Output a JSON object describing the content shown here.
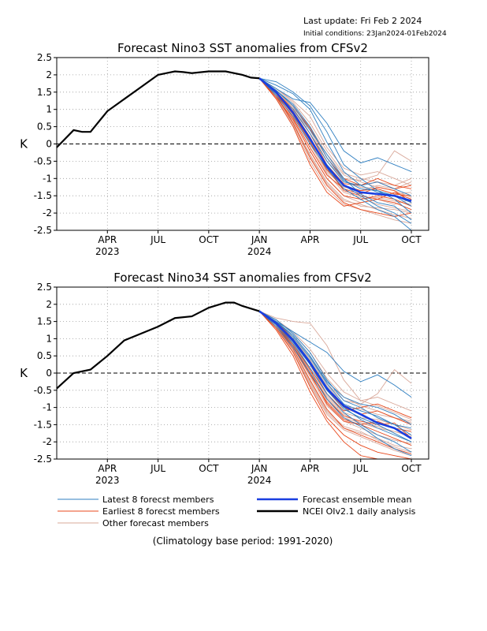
{
  "header": {
    "last_update": "Last update: Fri Feb 2 2024",
    "initial_conditions": "Initial conditions: 23Jan2024-01Feb2024"
  },
  "colors": {
    "latest": "#2f7fc1",
    "earliest": "#e8481c",
    "other": "#d9a89a",
    "mean": "#1a3fe0",
    "obs": "#000000"
  },
  "legend": {
    "latest": "Latest 8 forecst members",
    "earliest": "Earliest 8 forecst members",
    "other": "Other forecast members",
    "mean": "Forecast ensemble mean",
    "obs": "NCEI OIv2.1 daily analysis"
  },
  "footer": "(Climatology base period: 1991-2020)",
  "chart_data": [
    {
      "type": "line",
      "title": "Forecast Nino3 SST anomalies from CFSv2",
      "ylabel": "K",
      "ylim": [
        -2.5,
        2.5
      ],
      "yticks": [
        "2.5",
        "2",
        "1.5",
        "1",
        "0.5",
        "0",
        "-0.5",
        "-1",
        "-1.5",
        "-2",
        "-2.5"
      ],
      "xticks": [
        {
          "month": 3,
          "label": "APR",
          "year": "2023"
        },
        {
          "month": 6,
          "label": "JUL",
          "year": ""
        },
        {
          "month": 9,
          "label": "OCT",
          "year": ""
        },
        {
          "month": 12,
          "label": "JAN",
          "year": "2024"
        },
        {
          "month": 15,
          "label": "APR",
          "year": ""
        },
        {
          "month": 18,
          "label": "JUL",
          "year": ""
        },
        {
          "month": 21,
          "label": "OCT",
          "year": ""
        }
      ],
      "x_start_month": 0,
      "x_end_month": 21,
      "observed": {
        "x": [
          0,
          1,
          1.5,
          2,
          3,
          4,
          5,
          6,
          6.5,
          7,
          7.5,
          8,
          9,
          10,
          11,
          11.5,
          12
        ],
        "values": [
          -0.1,
          0.4,
          0.35,
          0.35,
          0.95,
          1.3,
          1.65,
          2.0,
          2.05,
          2.1,
          2.08,
          2.05,
          2.1,
          2.1,
          2.0,
          1.92,
          1.9
        ]
      },
      "mean": {
        "x": [
          12,
          13,
          14,
          15,
          16,
          17,
          18,
          19,
          20,
          21
        ],
        "values": [
          1.9,
          1.5,
          0.9,
          0.15,
          -0.65,
          -1.2,
          -1.4,
          -1.45,
          -1.5,
          -1.65
        ]
      },
      "members": [
        {
          "group": "latest",
          "values": [
            1.9,
            1.55,
            1.15,
            0.5,
            -0.4,
            -1.05,
            -1.3,
            -1.35,
            -1.5,
            -1.7
          ]
        },
        {
          "group": "latest",
          "values": [
            1.9,
            1.7,
            1.45,
            1.0,
            0.05,
            -0.8,
            -1.2,
            -1.4,
            -1.5,
            -1.8
          ]
        },
        {
          "group": "latest",
          "values": [
            1.9,
            1.6,
            1.3,
            1.2,
            0.6,
            -0.2,
            -0.55,
            -0.4,
            -0.6,
            -0.8
          ]
        },
        {
          "group": "latest",
          "values": [
            1.9,
            1.45,
            1.0,
            0.3,
            -0.5,
            -1.1,
            -1.2,
            -1.1,
            -1.3,
            -1.5
          ]
        },
        {
          "group": "latest",
          "values": [
            1.9,
            1.8,
            1.5,
            1.1,
            0.35,
            -0.6,
            -1.0,
            -1.35,
            -1.6,
            -2.0
          ]
        },
        {
          "group": "latest",
          "values": [
            1.9,
            1.5,
            0.9,
            0.1,
            -0.6,
            -1.2,
            -1.5,
            -1.8,
            -2.0,
            -2.3
          ]
        },
        {
          "group": "latest",
          "values": [
            1.9,
            1.55,
            1.1,
            0.4,
            -0.3,
            -1.0,
            -1.45,
            -1.7,
            -1.8,
            -2.2
          ]
        },
        {
          "group": "latest",
          "values": [
            1.9,
            1.4,
            0.8,
            0.0,
            -0.7,
            -1.3,
            -1.6,
            -1.9,
            -2.1,
            -2.5
          ]
        },
        {
          "group": "earliest",
          "values": [
            1.9,
            1.45,
            0.85,
            0.05,
            -0.75,
            -1.2,
            -1.35,
            -1.3,
            -1.45,
            -1.5
          ]
        },
        {
          "group": "earliest",
          "values": [
            1.9,
            1.5,
            1.0,
            0.3,
            -0.6,
            -1.15,
            -1.2,
            -1.0,
            -1.2,
            -1.3
          ]
        },
        {
          "group": "earliest",
          "values": [
            1.9,
            1.35,
            0.7,
            -0.2,
            -1.0,
            -1.5,
            -1.6,
            -1.5,
            -1.6,
            -1.8
          ]
        },
        {
          "group": "earliest",
          "values": [
            1.9,
            1.4,
            0.6,
            -0.4,
            -1.2,
            -1.7,
            -1.9,
            -2.0,
            -2.1,
            -2.0
          ]
        },
        {
          "group": "earliest",
          "values": [
            1.9,
            1.55,
            1.1,
            0.45,
            -0.4,
            -1.0,
            -1.2,
            -1.1,
            -1.3,
            -1.2
          ]
        },
        {
          "group": "earliest",
          "values": [
            1.9,
            1.3,
            0.5,
            -0.6,
            -1.4,
            -1.8,
            -1.7,
            -1.6,
            -1.7,
            -1.9
          ]
        },
        {
          "group": "earliest",
          "values": [
            1.9,
            1.5,
            0.95,
            0.2,
            -0.7,
            -1.35,
            -1.5,
            -1.6,
            -1.4,
            -1.6
          ]
        },
        {
          "group": "earliest",
          "values": [
            1.9,
            1.45,
            0.75,
            -0.1,
            -0.9,
            -1.3,
            -1.45,
            -1.25,
            -1.35,
            -1.7
          ]
        },
        {
          "group": "other",
          "values": [
            1.9,
            1.6,
            1.25,
            0.8,
            -0.1,
            -0.7,
            -0.9,
            -0.8,
            -1.0,
            -1.2
          ]
        },
        {
          "group": "other",
          "values": [
            1.9,
            1.5,
            1.0,
            0.4,
            -0.5,
            -1.0,
            -1.05,
            -0.9,
            -0.2,
            -0.5
          ]
        },
        {
          "group": "other",
          "values": [
            1.9,
            1.3,
            0.6,
            -0.3,
            -1.1,
            -1.6,
            -1.8,
            -1.85,
            -1.9,
            -2.0
          ]
        },
        {
          "group": "other",
          "values": [
            1.9,
            1.4,
            0.7,
            -0.2,
            -1.0,
            -1.5,
            -1.7,
            -1.6,
            -1.75,
            -1.6
          ]
        },
        {
          "group": "other",
          "values": [
            1.9,
            1.55,
            1.05,
            0.3,
            -0.5,
            -1.05,
            -1.25,
            -1.3,
            -1.45,
            -1.4
          ]
        },
        {
          "group": "other",
          "values": [
            1.9,
            1.35,
            0.55,
            -0.5,
            -1.3,
            -1.75,
            -1.9,
            -2.05,
            -2.2,
            -2.3
          ]
        },
        {
          "group": "other",
          "values": [
            1.9,
            1.45,
            0.9,
            0.1,
            -0.8,
            -1.25,
            -1.35,
            -1.2,
            -1.3,
            -1.1
          ]
        },
        {
          "group": "other",
          "values": [
            1.9,
            1.5,
            1.05,
            0.5,
            -0.3,
            -0.9,
            -1.1,
            -1.25,
            -1.35,
            -1.55
          ]
        },
        {
          "group": "other",
          "values": [
            1.9,
            1.4,
            0.8,
            0.0,
            -0.85,
            -1.4,
            -1.55,
            -1.75,
            -1.85,
            -1.95
          ]
        },
        {
          "group": "other",
          "values": [
            1.9,
            1.6,
            1.2,
            0.6,
            -0.2,
            -0.85,
            -1.0,
            -1.1,
            -1.2,
            -1.0
          ]
        },
        {
          "group": "other",
          "values": [
            1.9,
            1.35,
            0.65,
            -0.35,
            -1.15,
            -1.65,
            -1.75,
            -1.9,
            -2.05,
            -2.15
          ]
        },
        {
          "group": "other",
          "values": [
            1.9,
            1.45,
            0.85,
            0.05,
            -0.75,
            -1.3,
            -1.6,
            -1.55,
            -1.65,
            -1.75
          ]
        }
      ]
    },
    {
      "type": "line",
      "title": "Forecast Nino34 SST anomalies from CFSv2",
      "ylabel": "K",
      "ylim": [
        -2.5,
        2.5
      ],
      "yticks": [
        "2.5",
        "2",
        "1.5",
        "1",
        "0.5",
        "0",
        "-0.5",
        "-1",
        "-1.5",
        "-2",
        "-2.5"
      ],
      "xticks": [
        {
          "month": 3,
          "label": "APR",
          "year": "2023"
        },
        {
          "month": 6,
          "label": "JUL",
          "year": ""
        },
        {
          "month": 9,
          "label": "OCT",
          "year": ""
        },
        {
          "month": 12,
          "label": "JAN",
          "year": "2024"
        },
        {
          "month": 15,
          "label": "APR",
          "year": ""
        },
        {
          "month": 18,
          "label": "JUL",
          "year": ""
        },
        {
          "month": 21,
          "label": "OCT",
          "year": ""
        }
      ],
      "x_start_month": 0,
      "x_end_month": 21,
      "observed": {
        "x": [
          0,
          1,
          2,
          3,
          4,
          5,
          6,
          7,
          8,
          9,
          10,
          10.5,
          11,
          12
        ],
        "values": [
          -0.45,
          0.0,
          0.1,
          0.5,
          0.95,
          1.15,
          1.35,
          1.6,
          1.65,
          1.9,
          2.05,
          2.05,
          1.95,
          1.8
        ]
      },
      "mean": {
        "x": [
          12,
          13,
          14,
          15,
          16,
          17,
          18,
          19,
          20,
          21
        ],
        "values": [
          1.8,
          1.45,
          0.95,
          0.3,
          -0.45,
          -0.95,
          -1.2,
          -1.45,
          -1.6,
          -1.9
        ]
      },
      "members": [
        {
          "group": "latest",
          "values": [
            1.8,
            1.5,
            1.2,
            0.9,
            0.6,
            0.05,
            -0.25,
            -0.05,
            -0.35,
            -0.7
          ]
        },
        {
          "group": "latest",
          "values": [
            1.8,
            1.55,
            1.15,
            0.6,
            -0.2,
            -0.8,
            -1.0,
            -1.3,
            -1.5,
            -1.8
          ]
        },
        {
          "group": "latest",
          "values": [
            1.8,
            1.45,
            1.0,
            0.35,
            -0.4,
            -1.0,
            -1.35,
            -1.6,
            -1.8,
            -2.0
          ]
        },
        {
          "group": "latest",
          "values": [
            1.8,
            1.4,
            0.85,
            0.15,
            -0.6,
            -1.15,
            -1.5,
            -1.8,
            -2.0,
            -2.3
          ]
        },
        {
          "group": "latest",
          "values": [
            1.8,
            1.5,
            1.05,
            0.45,
            -0.3,
            -0.9,
            -1.1,
            -1.25,
            -1.5,
            -1.6
          ]
        },
        {
          "group": "latest",
          "values": [
            1.8,
            1.35,
            0.75,
            0.0,
            -0.75,
            -1.3,
            -1.55,
            -1.9,
            -2.2,
            -2.4
          ]
        },
        {
          "group": "latest",
          "values": [
            1.8,
            1.5,
            1.1,
            0.5,
            -0.25,
            -0.7,
            -0.9,
            -1.0,
            -1.2,
            -1.5
          ]
        },
        {
          "group": "latest",
          "values": [
            1.8,
            1.45,
            0.9,
            0.25,
            -0.5,
            -1.05,
            -1.3,
            -1.5,
            -1.75,
            -2.0
          ]
        },
        {
          "group": "earliest",
          "values": [
            1.8,
            1.4,
            0.8,
            0.0,
            -0.9,
            -1.4,
            -1.5,
            -1.4,
            -1.6,
            -1.7
          ]
        },
        {
          "group": "earliest",
          "values": [
            1.8,
            1.3,
            0.6,
            -0.4,
            -1.3,
            -1.8,
            -2.1,
            -2.3,
            -2.4,
            -2.5
          ]
        },
        {
          "group": "earliest",
          "values": [
            1.8,
            1.45,
            0.95,
            0.25,
            -0.6,
            -1.1,
            -1.0,
            -0.9,
            -1.1,
            -1.3
          ]
        },
        {
          "group": "earliest",
          "values": [
            1.8,
            1.35,
            0.7,
            -0.2,
            -1.05,
            -1.6,
            -1.8,
            -2.0,
            -2.2,
            -2.35
          ]
        },
        {
          "group": "earliest",
          "values": [
            1.8,
            1.5,
            1.0,
            0.35,
            -0.5,
            -1.0,
            -1.2,
            -1.1,
            -1.3,
            -1.5
          ]
        },
        {
          "group": "earliest",
          "values": [
            1.8,
            1.25,
            0.5,
            -0.55,
            -1.4,
            -2.0,
            -2.4,
            -2.5,
            -2.5,
            -2.5
          ]
        },
        {
          "group": "earliest",
          "values": [
            1.8,
            1.45,
            0.85,
            0.1,
            -0.75,
            -1.25,
            -1.4,
            -1.5,
            -1.45,
            -1.9
          ]
        },
        {
          "group": "earliest",
          "values": [
            1.8,
            1.4,
            0.75,
            -0.05,
            -0.85,
            -1.35,
            -1.5,
            -1.7,
            -1.9,
            -2.1
          ]
        },
        {
          "group": "other",
          "values": [
            1.8,
            1.6,
            1.5,
            1.45,
            0.8,
            -0.2,
            -0.8,
            -0.7,
            -0.9,
            -1.1
          ]
        },
        {
          "group": "other",
          "values": [
            1.8,
            1.5,
            1.1,
            0.5,
            -0.3,
            -0.8,
            -0.9,
            -0.6,
            0.1,
            -0.3
          ]
        },
        {
          "group": "other",
          "values": [
            1.8,
            1.3,
            0.6,
            -0.3,
            -1.15,
            -1.6,
            -1.75,
            -1.9,
            -2.1,
            -2.2
          ]
        },
        {
          "group": "other",
          "values": [
            1.8,
            1.4,
            0.8,
            0.05,
            -0.8,
            -1.3,
            -1.45,
            -1.6,
            -1.7,
            -1.8
          ]
        },
        {
          "group": "other",
          "values": [
            1.8,
            1.55,
            1.15,
            0.6,
            -0.15,
            -0.7,
            -0.95,
            -1.1,
            -1.3,
            -1.45
          ]
        },
        {
          "group": "other",
          "values": [
            1.8,
            1.35,
            0.65,
            -0.25,
            -1.1,
            -1.55,
            -1.7,
            -1.95,
            -2.15,
            -2.3
          ]
        },
        {
          "group": "other",
          "values": [
            1.8,
            1.45,
            0.9,
            0.15,
            -0.65,
            -1.15,
            -1.3,
            -1.35,
            -1.5,
            -1.65
          ]
        },
        {
          "group": "other",
          "values": [
            1.8,
            1.5,
            1.05,
            0.4,
            -0.35,
            -0.95,
            -1.05,
            -1.2,
            -1.3,
            -1.4
          ]
        },
        {
          "group": "other",
          "values": [
            1.8,
            1.4,
            0.75,
            -0.1,
            -0.95,
            -1.4,
            -1.6,
            -1.8,
            -1.95,
            -2.05
          ]
        },
        {
          "group": "other",
          "values": [
            1.8,
            1.55,
            1.2,
            0.7,
            0.0,
            -0.55,
            -0.8,
            -0.95,
            -1.15,
            -1.35
          ]
        },
        {
          "group": "other",
          "values": [
            1.8,
            1.35,
            0.6,
            -0.35,
            -1.2,
            -1.65,
            -1.85,
            -2.05,
            -2.25,
            -2.4
          ]
        },
        {
          "group": "other",
          "values": [
            1.8,
            1.45,
            0.85,
            0.05,
            -0.7,
            -1.2,
            -1.45,
            -1.55,
            -1.7,
            -1.85
          ]
        }
      ]
    }
  ]
}
